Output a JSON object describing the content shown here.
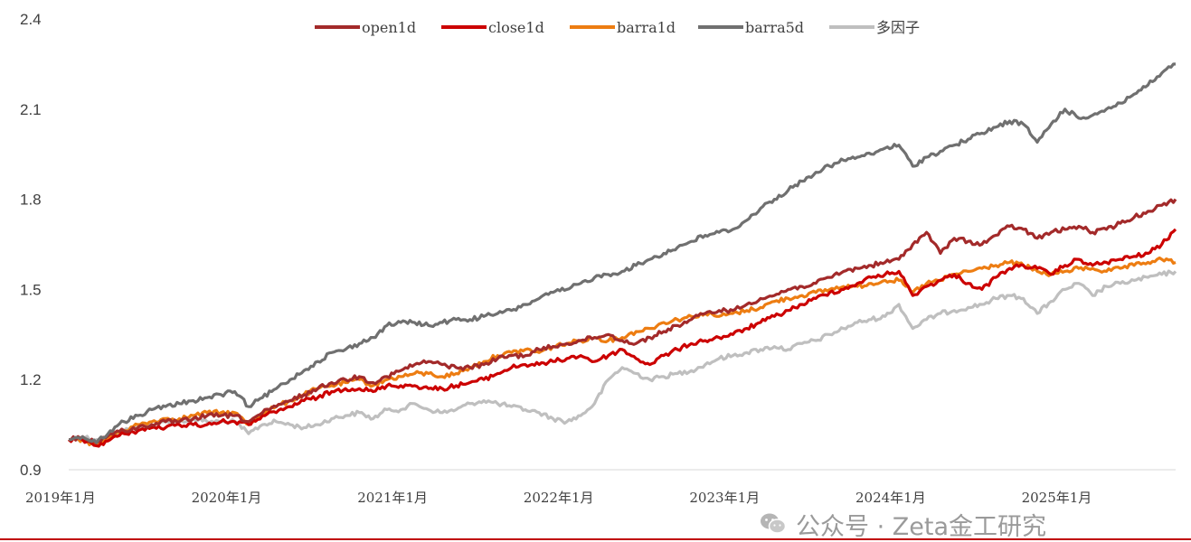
{
  "chart_data": {
    "type": "line",
    "title": "",
    "xlabel": "",
    "ylabel": "",
    "ylim": [
      0.9,
      2.4
    ],
    "yticks": [
      0.9,
      1.2,
      1.5,
      1.8,
      2.1,
      2.4
    ],
    "ytick_labels": [
      "0.9",
      "1.2",
      "1.5",
      "1.8",
      "2.1",
      "2.4"
    ],
    "xlim": [
      "2019-01",
      "2025-09"
    ],
    "xticks": [
      "2019-01",
      "2020-01",
      "2021-01",
      "2022-01",
      "2023-01",
      "2024-01",
      "2025-01"
    ],
    "xtick_labels": [
      "2019年1月",
      "2020年1月",
      "2021年1月",
      "2022年1月",
      "2023年1月",
      "2024年1月",
      "2025年1月"
    ],
    "grid": false,
    "legend_position": "top-center",
    "x": [
      "2019-01",
      "2019-02",
      "2019-03",
      "2019-04",
      "2019-05",
      "2019-06",
      "2019-07",
      "2019-08",
      "2019-09",
      "2019-10",
      "2019-11",
      "2019-12",
      "2020-01",
      "2020-02",
      "2020-03",
      "2020-04",
      "2020-05",
      "2020-06",
      "2020-07",
      "2020-08",
      "2020-09",
      "2020-10",
      "2020-11",
      "2020-12",
      "2021-01",
      "2021-02",
      "2021-03",
      "2021-04",
      "2021-05",
      "2021-06",
      "2021-07",
      "2021-08",
      "2021-09",
      "2021-10",
      "2021-11",
      "2021-12",
      "2022-01",
      "2022-02",
      "2022-03",
      "2022-04",
      "2022-05",
      "2022-06",
      "2022-07",
      "2022-08",
      "2022-09",
      "2022-10",
      "2022-11",
      "2022-12",
      "2023-01",
      "2023-02",
      "2023-03",
      "2023-04",
      "2023-05",
      "2023-06",
      "2023-07",
      "2023-08",
      "2023-09",
      "2023-10",
      "2023-11",
      "2023-12",
      "2024-01",
      "2024-02",
      "2024-03",
      "2024-04",
      "2024-05",
      "2024-06",
      "2024-07",
      "2024-08",
      "2024-09",
      "2024-10",
      "2024-11",
      "2024-12",
      "2025-01",
      "2025-02",
      "2025-03",
      "2025-04",
      "2025-05",
      "2025-06",
      "2025-07",
      "2025-08",
      "2025-09"
    ],
    "series": [
      {
        "name": "open1d",
        "color": "#a32a2a",
        "values": [
          1.0,
          1.01,
          0.99,
          1.02,
          1.03,
          1.04,
          1.05,
          1.06,
          1.06,
          1.07,
          1.08,
          1.08,
          1.08,
          1.06,
          1.09,
          1.11,
          1.13,
          1.15,
          1.17,
          1.19,
          1.2,
          1.21,
          1.19,
          1.21,
          1.23,
          1.25,
          1.26,
          1.25,
          1.24,
          1.24,
          1.25,
          1.27,
          1.28,
          1.28,
          1.3,
          1.31,
          1.32,
          1.33,
          1.34,
          1.35,
          1.33,
          1.32,
          1.34,
          1.36,
          1.38,
          1.4,
          1.42,
          1.43,
          1.43,
          1.45,
          1.47,
          1.48,
          1.5,
          1.51,
          1.52,
          1.54,
          1.56,
          1.57,
          1.58,
          1.59,
          1.6,
          1.65,
          1.69,
          1.62,
          1.67,
          1.66,
          1.65,
          1.68,
          1.71,
          1.7,
          1.67,
          1.69,
          1.7,
          1.71,
          1.69,
          1.7,
          1.72,
          1.74,
          1.76,
          1.78,
          1.8
        ]
      },
      {
        "name": "close1d",
        "color": "#cc0000",
        "values": [
          1.0,
          1.0,
          0.98,
          1.0,
          1.02,
          1.03,
          1.04,
          1.04,
          1.05,
          1.05,
          1.05,
          1.06,
          1.06,
          1.05,
          1.08,
          1.09,
          1.11,
          1.13,
          1.14,
          1.16,
          1.17,
          1.17,
          1.16,
          1.18,
          1.18,
          1.18,
          1.17,
          1.17,
          1.18,
          1.19,
          1.2,
          1.22,
          1.24,
          1.25,
          1.25,
          1.26,
          1.27,
          1.28,
          1.26,
          1.28,
          1.3,
          1.27,
          1.25,
          1.28,
          1.3,
          1.32,
          1.33,
          1.34,
          1.35,
          1.37,
          1.39,
          1.41,
          1.43,
          1.45,
          1.47,
          1.49,
          1.5,
          1.52,
          1.54,
          1.55,
          1.56,
          1.48,
          1.51,
          1.53,
          1.55,
          1.52,
          1.5,
          1.54,
          1.57,
          1.58,
          1.57,
          1.55,
          1.58,
          1.6,
          1.58,
          1.59,
          1.6,
          1.61,
          1.62,
          1.65,
          1.7
        ]
      },
      {
        "name": "barra1d",
        "color": "#ed7d12",
        "values": [
          1.0,
          1.0,
          0.98,
          1.01,
          1.03,
          1.05,
          1.06,
          1.07,
          1.07,
          1.08,
          1.09,
          1.09,
          1.09,
          1.05,
          1.09,
          1.11,
          1.13,
          1.15,
          1.17,
          1.18,
          1.19,
          1.2,
          1.18,
          1.2,
          1.21,
          1.22,
          1.22,
          1.21,
          1.22,
          1.24,
          1.26,
          1.28,
          1.29,
          1.3,
          1.29,
          1.31,
          1.32,
          1.33,
          1.34,
          1.33,
          1.34,
          1.36,
          1.37,
          1.39,
          1.4,
          1.41,
          1.42,
          1.41,
          1.42,
          1.43,
          1.44,
          1.46,
          1.47,
          1.48,
          1.49,
          1.5,
          1.51,
          1.51,
          1.52,
          1.53,
          1.53,
          1.49,
          1.52,
          1.53,
          1.55,
          1.56,
          1.57,
          1.58,
          1.59,
          1.58,
          1.56,
          1.55,
          1.56,
          1.57,
          1.57,
          1.56,
          1.57,
          1.58,
          1.59,
          1.6,
          1.59
        ]
      },
      {
        "name": "barra5d",
        "color": "#707070",
        "values": [
          1.0,
          1.01,
          0.99,
          1.03,
          1.06,
          1.08,
          1.1,
          1.11,
          1.12,
          1.13,
          1.14,
          1.15,
          1.16,
          1.11,
          1.14,
          1.17,
          1.2,
          1.23,
          1.26,
          1.29,
          1.3,
          1.32,
          1.34,
          1.38,
          1.39,
          1.39,
          1.38,
          1.39,
          1.4,
          1.4,
          1.41,
          1.42,
          1.43,
          1.45,
          1.47,
          1.49,
          1.5,
          1.52,
          1.54,
          1.55,
          1.56,
          1.58,
          1.6,
          1.62,
          1.64,
          1.66,
          1.68,
          1.69,
          1.7,
          1.73,
          1.77,
          1.8,
          1.83,
          1.86,
          1.89,
          1.91,
          1.93,
          1.94,
          1.95,
          1.97,
          1.98,
          1.91,
          1.94,
          1.96,
          1.98,
          2.0,
          2.02,
          2.04,
          2.06,
          2.05,
          1.99,
          2.05,
          2.1,
          2.07,
          2.08,
          2.1,
          2.12,
          2.15,
          2.18,
          2.22,
          2.25
        ]
      },
      {
        "name": "多因子",
        "color": "#bfbfbf",
        "values": [
          1.0,
          1.01,
          1.0,
          1.01,
          1.03,
          1.04,
          1.05,
          1.06,
          1.06,
          1.07,
          1.06,
          1.06,
          1.06,
          1.02,
          1.05,
          1.06,
          1.05,
          1.04,
          1.05,
          1.07,
          1.08,
          1.09,
          1.07,
          1.1,
          1.1,
          1.12,
          1.1,
          1.09,
          1.1,
          1.12,
          1.13,
          1.12,
          1.11,
          1.1,
          1.09,
          1.07,
          1.06,
          1.08,
          1.12,
          1.2,
          1.24,
          1.22,
          1.2,
          1.21,
          1.22,
          1.23,
          1.25,
          1.27,
          1.28,
          1.29,
          1.3,
          1.31,
          1.3,
          1.32,
          1.33,
          1.35,
          1.37,
          1.39,
          1.4,
          1.41,
          1.45,
          1.37,
          1.4,
          1.42,
          1.43,
          1.44,
          1.45,
          1.47,
          1.48,
          1.47,
          1.42,
          1.46,
          1.5,
          1.52,
          1.48,
          1.51,
          1.52,
          1.53,
          1.54,
          1.55,
          1.56
        ]
      }
    ]
  },
  "watermark": {
    "text": "公众号 · Zeta金工研究",
    "icon": "wechat-icon"
  }
}
